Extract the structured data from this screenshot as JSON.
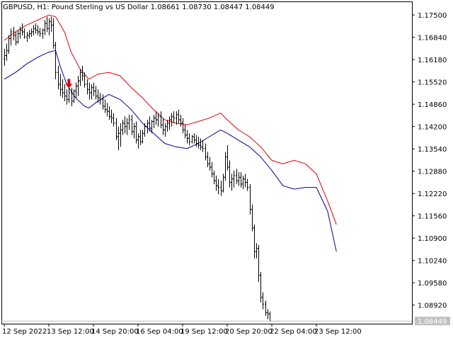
{
  "chart_data": {
    "type": "line",
    "title": "GBPUSD, H1:  Pound Sterling vs US Dollar  1.08661 1.08730 1.08447 1.08449",
    "ylim": [
      1.0837,
      1.179
    ],
    "y_ticks": [
      "1.17500",
      "1.16840",
      "1.16180",
      "1.15520",
      "1.14860",
      "1.14200",
      "1.13540",
      "1.12880",
      "1.12220",
      "1.11560",
      "1.10900",
      "1.10240",
      "1.09580",
      "1.08920"
    ],
    "y_tick_values": [
      1.175,
      1.1684,
      1.1618,
      1.1552,
      1.1486,
      1.142,
      1.1354,
      1.1288,
      1.1222,
      1.1156,
      1.109,
      1.1024,
      1.0958,
      1.0892
    ],
    "last_price": "1.08449",
    "last_price_value": 1.08449,
    "x_ticks": [
      "12 Sep 2022",
      "13 Sep 12:00",
      "14 Sep 20:00",
      "16 Sep 04:00",
      "19 Sep 12:00",
      "20 Sep 20:00",
      "22 Sep 04:00",
      "23 Sep 12:00"
    ],
    "x_tick_bar_index": [
      0,
      20,
      40,
      60,
      80,
      100,
      120,
      140
    ],
    "sell_signal": {
      "bar_index": 29,
      "value": 1.154
    },
    "colors": {
      "price": "#000000",
      "upper_band": "#e00000",
      "lower_band": "#00008b",
      "signal": "#e00000",
      "grid": "#c0c0c0"
    },
    "upper_band": [
      [
        0,
        1.1675
      ],
      [
        5,
        1.17
      ],
      [
        10,
        1.172
      ],
      [
        15,
        1.1735
      ],
      [
        20,
        1.175
      ],
      [
        23,
        1.1745
      ],
      [
        27,
        1.17
      ],
      [
        30,
        1.164
      ],
      [
        34,
        1.159
      ],
      [
        38,
        1.156
      ],
      [
        42,
        1.1575
      ],
      [
        47,
        1.158
      ],
      [
        52,
        1.157
      ],
      [
        57,
        1.1535
      ],
      [
        62,
        1.1505
      ],
      [
        67,
        1.147
      ],
      [
        72,
        1.144
      ],
      [
        77,
        1.143
      ],
      [
        82,
        1.1425
      ],
      [
        87,
        1.1435
      ],
      [
        92,
        1.1445
      ],
      [
        97,
        1.146
      ],
      [
        100,
        1.144
      ],
      [
        105,
        1.141
      ],
      [
        110,
        1.139
      ],
      [
        115,
        1.136
      ],
      [
        120,
        1.132
      ],
      [
        125,
        1.131
      ],
      [
        130,
        1.132
      ],
      [
        135,
        1.131
      ],
      [
        140,
        1.128
      ],
      [
        145,
        1.12
      ],
      [
        149,
        1.113
      ]
    ],
    "lower_band": [
      [
        0,
        1.156
      ],
      [
        5,
        1.158
      ],
      [
        10,
        1.1605
      ],
      [
        15,
        1.1625
      ],
      [
        20,
        1.164
      ],
      [
        23,
        1.1645
      ],
      [
        25,
        1.16
      ],
      [
        28,
        1.1545
      ],
      [
        32,
        1.1505
      ],
      [
        36,
        1.148
      ],
      [
        38,
        1.1475
      ],
      [
        42,
        1.1495
      ],
      [
        47,
        1.1515
      ],
      [
        52,
        1.15
      ],
      [
        57,
        1.147
      ],
      [
        62,
        1.143
      ],
      [
        67,
        1.14
      ],
      [
        72,
        1.137
      ],
      [
        77,
        1.136
      ],
      [
        82,
        1.1355
      ],
      [
        87,
        1.137
      ],
      [
        92,
        1.139
      ],
      [
        97,
        1.141
      ],
      [
        100,
        1.14
      ],
      [
        105,
        1.138
      ],
      [
        110,
        1.136
      ],
      [
        115,
        1.133
      ],
      [
        120,
        1.129
      ],
      [
        125,
        1.1245
      ],
      [
        130,
        1.1235
      ],
      [
        135,
        1.124
      ],
      [
        140,
        1.124
      ],
      [
        145,
        1.117
      ],
      [
        149,
        1.105
      ]
    ],
    "ohlc": [
      [
        1.162,
        1.165,
        1.16,
        1.163
      ],
      [
        1.163,
        1.1665,
        1.1615,
        1.1645
      ],
      [
        1.1645,
        1.169,
        1.1635,
        1.168
      ],
      [
        1.168,
        1.171,
        1.166,
        1.17
      ],
      [
        1.17,
        1.1715,
        1.1675,
        1.169
      ],
      [
        1.169,
        1.17,
        1.166,
        1.167
      ],
      [
        1.167,
        1.1705,
        1.1665,
        1.1695
      ],
      [
        1.1695,
        1.1715,
        1.168,
        1.1705
      ],
      [
        1.1705,
        1.1725,
        1.169,
        1.17
      ],
      [
        1.17,
        1.171,
        1.168,
        1.1685
      ],
      [
        1.1685,
        1.17,
        1.167,
        1.169
      ],
      [
        1.169,
        1.1705,
        1.168,
        1.1695
      ],
      [
        1.1695,
        1.171,
        1.1685,
        1.17
      ],
      [
        1.17,
        1.172,
        1.169,
        1.171
      ],
      [
        1.171,
        1.1725,
        1.1695,
        1.1705
      ],
      [
        1.1705,
        1.172,
        1.169,
        1.17
      ],
      [
        1.17,
        1.1712,
        1.1685,
        1.1695
      ],
      [
        1.1695,
        1.171,
        1.168,
        1.1705
      ],
      [
        1.1705,
        1.1735,
        1.169,
        1.1725
      ],
      [
        1.1725,
        1.1745,
        1.17,
        1.171
      ],
      [
        1.171,
        1.174,
        1.169,
        1.173
      ],
      [
        1.173,
        1.1745,
        1.17,
        1.172
      ],
      [
        1.172,
        1.174,
        1.165,
        1.166
      ],
      [
        1.166,
        1.167,
        1.156,
        1.158
      ],
      [
        1.158,
        1.16,
        1.153,
        1.1545
      ],
      [
        1.1545,
        1.1575,
        1.151,
        1.153
      ],
      [
        1.153,
        1.156,
        1.1505,
        1.152
      ],
      [
        1.152,
        1.1545,
        1.1495,
        1.151
      ],
      [
        1.151,
        1.153,
        1.1485,
        1.15
      ],
      [
        1.15,
        1.154,
        1.149,
        1.152
      ],
      [
        1.152,
        1.1535,
        1.148,
        1.1495
      ],
      [
        1.1495,
        1.153,
        1.149,
        1.1525
      ],
      [
        1.1525,
        1.155,
        1.1505,
        1.154
      ],
      [
        1.154,
        1.157,
        1.151,
        1.1555
      ],
      [
        1.1555,
        1.159,
        1.154,
        1.158
      ],
      [
        1.158,
        1.16,
        1.1555,
        1.157
      ],
      [
        1.157,
        1.158,
        1.1535,
        1.1545
      ],
      [
        1.1545,
        1.156,
        1.1515,
        1.153
      ],
      [
        1.153,
        1.155,
        1.15,
        1.152
      ],
      [
        1.152,
        1.1545,
        1.15,
        1.1535
      ],
      [
        1.1535,
        1.155,
        1.151,
        1.1525
      ],
      [
        1.1525,
        1.154,
        1.15,
        1.151
      ],
      [
        1.151,
        1.153,
        1.149,
        1.1505
      ],
      [
        1.1505,
        1.152,
        1.1485,
        1.15
      ],
      [
        1.15,
        1.1515,
        1.147,
        1.148
      ],
      [
        1.148,
        1.15,
        1.146,
        1.147
      ],
      [
        1.147,
        1.149,
        1.145,
        1.1465
      ],
      [
        1.1465,
        1.148,
        1.144,
        1.145
      ],
      [
        1.145,
        1.147,
        1.143,
        1.1445
      ],
      [
        1.1445,
        1.146,
        1.142,
        1.143
      ],
      [
        1.143,
        1.1445,
        1.138,
        1.139
      ],
      [
        1.139,
        1.142,
        1.135,
        1.14
      ],
      [
        1.14,
        1.143,
        1.136,
        1.141
      ],
      [
        1.141,
        1.144,
        1.1395,
        1.143
      ],
      [
        1.143,
        1.145,
        1.14,
        1.142
      ],
      [
        1.142,
        1.1445,
        1.1395,
        1.143
      ],
      [
        1.143,
        1.1455,
        1.141,
        1.144
      ],
      [
        1.144,
        1.1455,
        1.1395,
        1.1405
      ],
      [
        1.1405,
        1.143,
        1.1385,
        1.142
      ],
      [
        1.142,
        1.1435,
        1.137,
        1.138
      ],
      [
        1.138,
        1.14,
        1.1355,
        1.139
      ],
      [
        1.139,
        1.141,
        1.1365,
        1.1375
      ],
      [
        1.1375,
        1.141,
        1.137,
        1.14
      ],
      [
        1.14,
        1.143,
        1.139,
        1.142
      ],
      [
        1.142,
        1.144,
        1.14,
        1.143
      ],
      [
        1.143,
        1.145,
        1.1405,
        1.1415
      ],
      [
        1.1415,
        1.144,
        1.14,
        1.1435
      ],
      [
        1.1435,
        1.1455,
        1.1415,
        1.1445
      ],
      [
        1.1445,
        1.1465,
        1.1425,
        1.144
      ],
      [
        1.144,
        1.146,
        1.142,
        1.145
      ],
      [
        1.145,
        1.1465,
        1.1415,
        1.1425
      ],
      [
        1.1425,
        1.1445,
        1.1395,
        1.141
      ],
      [
        1.141,
        1.143,
        1.139,
        1.142
      ],
      [
        1.142,
        1.144,
        1.1405,
        1.143
      ],
      [
        1.143,
        1.145,
        1.141,
        1.144
      ],
      [
        1.144,
        1.146,
        1.142,
        1.145
      ],
      [
        1.145,
        1.1465,
        1.143,
        1.1445
      ],
      [
        1.1445,
        1.1465,
        1.1425,
        1.1455
      ],
      [
        1.1455,
        1.147,
        1.143,
        1.144
      ],
      [
        1.144,
        1.1455,
        1.142,
        1.143
      ],
      [
        1.143,
        1.1445,
        1.14,
        1.141
      ],
      [
        1.141,
        1.1425,
        1.1385,
        1.1395
      ],
      [
        1.1395,
        1.141,
        1.137,
        1.1385
      ],
      [
        1.1385,
        1.14,
        1.1365,
        1.1375
      ],
      [
        1.1375,
        1.1395,
        1.137,
        1.139
      ],
      [
        1.139,
        1.14,
        1.137,
        1.138
      ],
      [
        1.138,
        1.1395,
        1.136,
        1.137
      ],
      [
        1.137,
        1.139,
        1.1355,
        1.1365
      ],
      [
        1.1365,
        1.1385,
        1.135,
        1.136
      ],
      [
        1.136,
        1.138,
        1.1345,
        1.1355
      ],
      [
        1.1355,
        1.137,
        1.132,
        1.133
      ],
      [
        1.133,
        1.1345,
        1.13,
        1.131
      ],
      [
        1.131,
        1.133,
        1.129,
        1.13
      ],
      [
        1.13,
        1.1315,
        1.127,
        1.128
      ],
      [
        1.128,
        1.129,
        1.125,
        1.126
      ],
      [
        1.126,
        1.1275,
        1.123,
        1.1245
      ],
      [
        1.1245,
        1.1265,
        1.122,
        1.124
      ],
      [
        1.124,
        1.126,
        1.1215,
        1.123
      ],
      [
        1.123,
        1.128,
        1.1225,
        1.127
      ],
      [
        1.127,
        1.1345,
        1.126,
        1.133
      ],
      [
        1.133,
        1.1365,
        1.129,
        1.13
      ],
      [
        1.13,
        1.132,
        1.124,
        1.1255
      ],
      [
        1.1255,
        1.128,
        1.123,
        1.1265
      ],
      [
        1.1265,
        1.129,
        1.124,
        1.1275
      ],
      [
        1.1275,
        1.1295,
        1.125,
        1.126
      ],
      [
        1.126,
        1.1285,
        1.1245,
        1.127
      ],
      [
        1.127,
        1.1285,
        1.124,
        1.125
      ],
      [
        1.125,
        1.1275,
        1.1235,
        1.1265
      ],
      [
        1.1265,
        1.128,
        1.124,
        1.1255
      ],
      [
        1.1255,
        1.1265,
        1.123,
        1.124
      ],
      [
        1.124,
        1.125,
        1.116,
        1.1175
      ],
      [
        1.1175,
        1.119,
        1.111,
        1.112
      ],
      [
        1.112,
        1.113,
        1.103,
        1.105
      ],
      [
        1.105,
        1.1075,
        1.103,
        1.106
      ],
      [
        1.106,
        1.107,
        1.096,
        1.098
      ],
      [
        1.098,
        1.099,
        1.09,
        1.0915
      ],
      [
        1.0915,
        1.093,
        1.088,
        1.0895
      ],
      [
        1.0895,
        1.0905,
        1.086,
        1.087
      ],
      [
        1.087,
        1.088,
        1.085,
        1.0866
      ],
      [
        1.08661,
        1.0873,
        1.08447,
        1.08449
      ]
    ]
  }
}
